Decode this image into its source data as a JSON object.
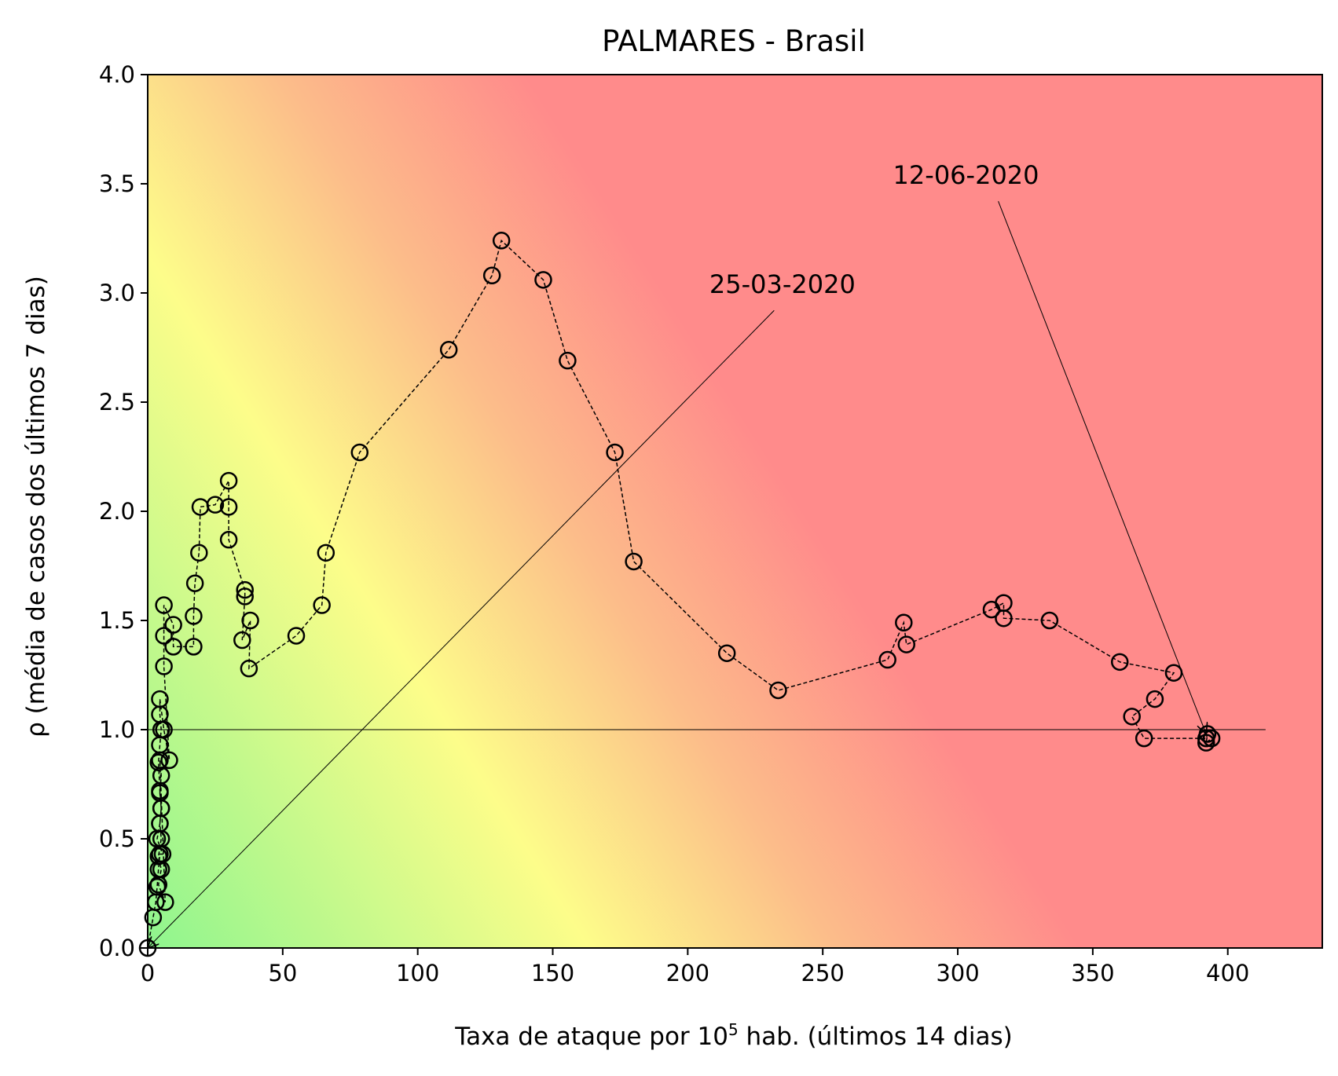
{
  "chart_data": {
    "type": "scatter",
    "title": "PALMARES - Brasil",
    "xlabel": "Taxa de ataque por 10",
    "xlabel_sup": "5",
    "xlabel_suffix": " hab. (últimos 14 dias)",
    "ylabel": "ρ (média de casos dos últimos 7 dias)",
    "xlim": [
      0,
      435
    ],
    "ylim": [
      0,
      4.0
    ],
    "xticks": [
      0,
      50,
      100,
      150,
      200,
      250,
      300,
      350,
      400
    ],
    "yticks": [
      0.0,
      0.5,
      1.0,
      1.5,
      2.0,
      2.5,
      3.0,
      3.5,
      4.0
    ],
    "ytick_labels": [
      "0.0",
      "0.5",
      "1.0",
      "1.5",
      "2.0",
      "2.5",
      "3.0",
      "3.5",
      "4.0"
    ],
    "reference_line": {
      "y": 1.0,
      "x_range": [
        0,
        414
      ]
    },
    "grid": false,
    "background": "gradient green (low risk) → yellow → red (high risk)",
    "colors": {
      "green": "#8ef58e",
      "yellow": "#fdfd8a",
      "orange": "#fcbd8a",
      "red": "#ff8b8b"
    },
    "marker": "open circle, black edge",
    "line_style": "dashed black",
    "series": [
      {
        "points": [
          [
            0.0,
            0.0
          ],
          [
            2.0,
            0.14
          ],
          [
            3.0,
            0.21
          ],
          [
            3.5,
            0.28
          ],
          [
            4.0,
            0.36
          ],
          [
            4.5,
            0.43
          ],
          [
            5.5,
            0.43
          ],
          [
            3.5,
            0.5
          ],
          [
            4.5,
            0.57
          ],
          [
            5.0,
            0.64
          ],
          [
            4.5,
            0.71
          ],
          [
            5.0,
            0.79
          ],
          [
            4.5,
            0.86
          ],
          [
            6.5,
            0.21
          ],
          [
            4.0,
            0.29
          ],
          [
            5.0,
            0.36
          ],
          [
            4.0,
            0.42
          ],
          [
            5.0,
            0.5
          ],
          [
            4.5,
            0.57
          ],
          [
            5.0,
            0.64
          ],
          [
            4.5,
            0.72
          ],
          [
            4.0,
            0.85
          ],
          [
            4.5,
            0.93
          ],
          [
            5.0,
            1.0
          ],
          [
            4.5,
            1.07
          ],
          [
            4.5,
            1.14
          ],
          [
            6.0,
            1.0
          ],
          [
            8.0,
            0.86
          ],
          [
            6.0,
            1.29
          ],
          [
            6.0,
            1.43
          ],
          [
            6.0,
            1.57
          ],
          [
            9.5,
            1.48
          ],
          [
            9.5,
            1.38
          ],
          [
            17.0,
            1.38
          ],
          [
            17.0,
            1.52
          ],
          [
            17.5,
            1.67
          ],
          [
            19.0,
            1.81
          ],
          [
            19.5,
            2.02
          ],
          [
            25.0,
            2.03
          ],
          [
            30.0,
            2.14
          ],
          [
            30.0,
            2.02
          ],
          [
            30.0,
            1.87
          ],
          [
            36.0,
            1.64
          ],
          [
            36.0,
            1.61
          ],
          [
            35.0,
            1.41
          ],
          [
            38.0,
            1.5
          ],
          [
            37.5,
            1.28
          ],
          [
            55.0,
            1.43
          ],
          [
            64.5,
            1.57
          ],
          [
            66.0,
            1.81
          ],
          [
            78.5,
            2.27
          ],
          [
            111.5,
            2.74
          ],
          [
            127.5,
            3.08
          ],
          [
            131.0,
            3.24
          ],
          [
            146.5,
            3.06
          ],
          [
            155.5,
            2.69
          ],
          [
            173.0,
            2.27
          ],
          [
            180.0,
            1.77
          ],
          [
            214.5,
            1.35
          ],
          [
            233.5,
            1.18
          ],
          [
            274.0,
            1.32
          ],
          [
            280.0,
            1.49
          ],
          [
            281.0,
            1.39
          ],
          [
            312.5,
            1.55
          ],
          [
            317.0,
            1.58
          ],
          [
            317.0,
            1.51
          ],
          [
            334.0,
            1.5
          ],
          [
            360.0,
            1.31
          ],
          [
            380.0,
            1.26
          ],
          [
            373.0,
            1.14
          ],
          [
            364.5,
            1.06
          ],
          [
            369.0,
            0.96
          ],
          [
            392.0,
            0.96
          ],
          [
            392.5,
            0.98
          ],
          [
            392.0,
            0.94
          ],
          [
            394.0,
            0.96
          ]
        ]
      }
    ],
    "annotations": [
      {
        "text": "25-03-2020",
        "text_at": [
          208,
          3.0
        ],
        "arrow_from": [
          232,
          2.92
        ],
        "arrow_to": [
          0,
          0
        ]
      },
      {
        "text": "12-06-2020",
        "text_at": [
          276,
          3.5
        ],
        "arrow_from": [
          315,
          3.42
        ],
        "arrow_to": [
          392,
          0.98
        ]
      }
    ]
  }
}
